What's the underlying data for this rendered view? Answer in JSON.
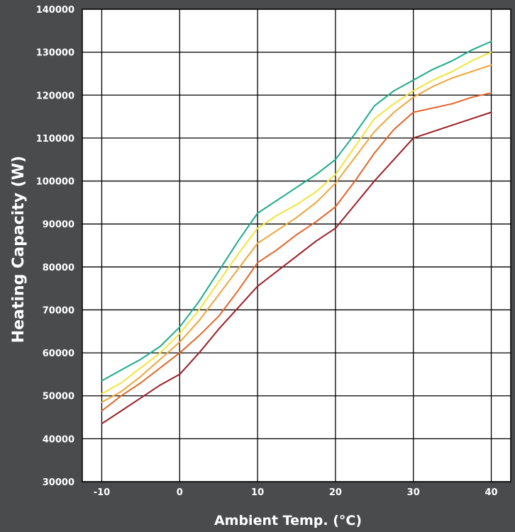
{
  "chart_data": {
    "type": "line",
    "xlabel": "Ambient Temp. (°C)",
    "ylabel": "Heating Capacity (W)",
    "title": "",
    "xlim": [
      -12.5,
      42.5
    ],
    "ylim": [
      30000,
      140000
    ],
    "xticks": [
      -10,
      0,
      10,
      20,
      30,
      40
    ],
    "yticks": [
      30000,
      40000,
      50000,
      60000,
      70000,
      80000,
      90000,
      100000,
      110000,
      120000,
      130000,
      140000
    ],
    "grid": true,
    "legend": "none",
    "colors": {
      "background": "#4a4b4d",
      "plot_background": "#ffffff",
      "grid": "#000000"
    },
    "series": [
      {
        "color": "#1eaa8c",
        "x": [
          -10,
          -7.5,
          -5,
          -2.5,
          0,
          2.5,
          5,
          7.5,
          10,
          12.5,
          15,
          17.5,
          20,
          22.5,
          25,
          27.5,
          30,
          32.5,
          35,
          37.5,
          40
        ],
        "y": [
          53500,
          56000,
          58500,
          61500,
          66000,
          72000,
          79000,
          86000,
          92500,
          95500,
          98500,
          101500,
          105000,
          111000,
          117500,
          121000,
          123500,
          126000,
          128000,
          130500,
          132500
        ]
      },
      {
        "color": "#f1e43a",
        "x": [
          -10,
          -7.5,
          -5,
          -2.5,
          0,
          2.5,
          5,
          7.5,
          10,
          12.5,
          15,
          17.5,
          20,
          22.5,
          25,
          27.5,
          30,
          32.5,
          35,
          37.5,
          40
        ],
        "y": [
          50500,
          53000,
          56500,
          60000,
          64500,
          70000,
          76500,
          83000,
          89000,
          92000,
          94500,
          97500,
          101500,
          108000,
          114500,
          118000,
          121000,
          123500,
          125500,
          128000,
          130000
        ]
      },
      {
        "color": "#f1a43a",
        "x": [
          -10,
          -7.5,
          -5,
          -2.5,
          0,
          2.5,
          5,
          7.5,
          10,
          12.5,
          15,
          17.5,
          20,
          22.5,
          25,
          27.5,
          30,
          32.5,
          35,
          37.5,
          40
        ],
        "y": [
          48500,
          51000,
          54500,
          58500,
          62500,
          67500,
          73500,
          79500,
          85500,
          88500,
          91500,
          95000,
          99500,
          105500,
          111500,
          116000,
          119500,
          122000,
          124000,
          125500,
          127000
        ]
      },
      {
        "color": "#e2662a",
        "x": [
          -10,
          -7.5,
          -5,
          -2.5,
          0,
          2.5,
          5,
          7.5,
          10,
          12.5,
          15,
          17.5,
          20,
          22.5,
          25,
          27.5,
          30,
          32.5,
          35,
          37.5,
          40
        ],
        "y": [
          46500,
          50000,
          53000,
          56500,
          60000,
          64000,
          68500,
          74500,
          81000,
          84000,
          87500,
          90500,
          94000,
          100000,
          106500,
          112000,
          116000,
          117000,
          118000,
          119500,
          120500
        ]
      },
      {
        "color": "#9c1e26",
        "x": [
          -10,
          -7.5,
          -5,
          -2.5,
          0,
          2.5,
          5,
          7.5,
          10,
          12.5,
          15,
          17.5,
          20,
          22.5,
          25,
          27.5,
          30,
          32.5,
          35,
          37.5,
          40
        ],
        "y": [
          43500,
          46500,
          49500,
          52500,
          55000,
          60000,
          65500,
          70500,
          75500,
          79000,
          82500,
          86000,
          89000,
          94500,
          100000,
          105000,
          110000,
          111500,
          113000,
          114500,
          116000
        ]
      }
    ]
  }
}
